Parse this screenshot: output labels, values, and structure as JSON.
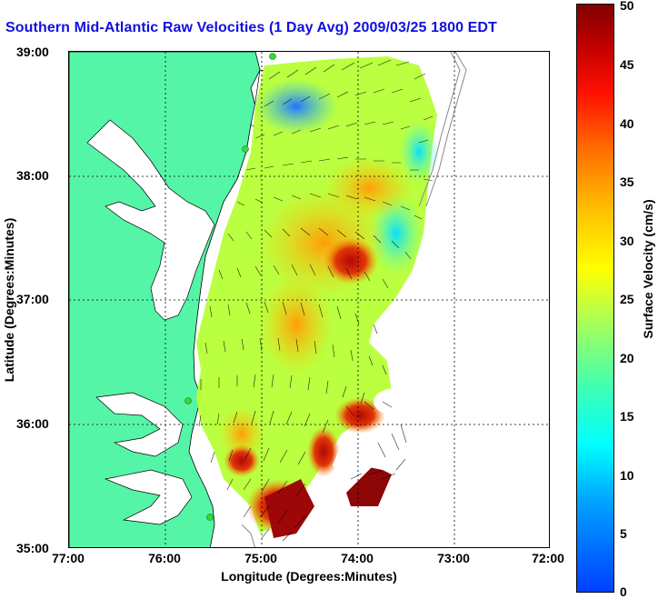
{
  "title": "Southern Mid-Atlantic Raw Velocities (1 Day Avg) 2009/03/25 1800 EDT",
  "xlabel": "Longitude (Degrees:Minutes)",
  "ylabel": "Latitude (Degrees:Minutes)",
  "x_ticks": [
    "77:00",
    "76:00",
    "75:00",
    "74:00",
    "73:00",
    "72:00"
  ],
  "y_ticks": [
    "39:00",
    "38:00",
    "37:00",
    "36:00",
    "35:00"
  ],
  "colorbar": {
    "label": "Surface Velocity (cm/s)",
    "ticks": [
      "50",
      "45",
      "40",
      "35",
      "30",
      "25",
      "20",
      "15",
      "10",
      "5",
      "0"
    ],
    "range": [
      0,
      50
    ]
  },
  "colors": {
    "land": "#55f5a8",
    "title": "#1010e0",
    "station": "#33dd33"
  },
  "map": {
    "lon_range": [
      -77,
      -72
    ],
    "lat_range": [
      35,
      39
    ],
    "grid": "dotted"
  }
}
